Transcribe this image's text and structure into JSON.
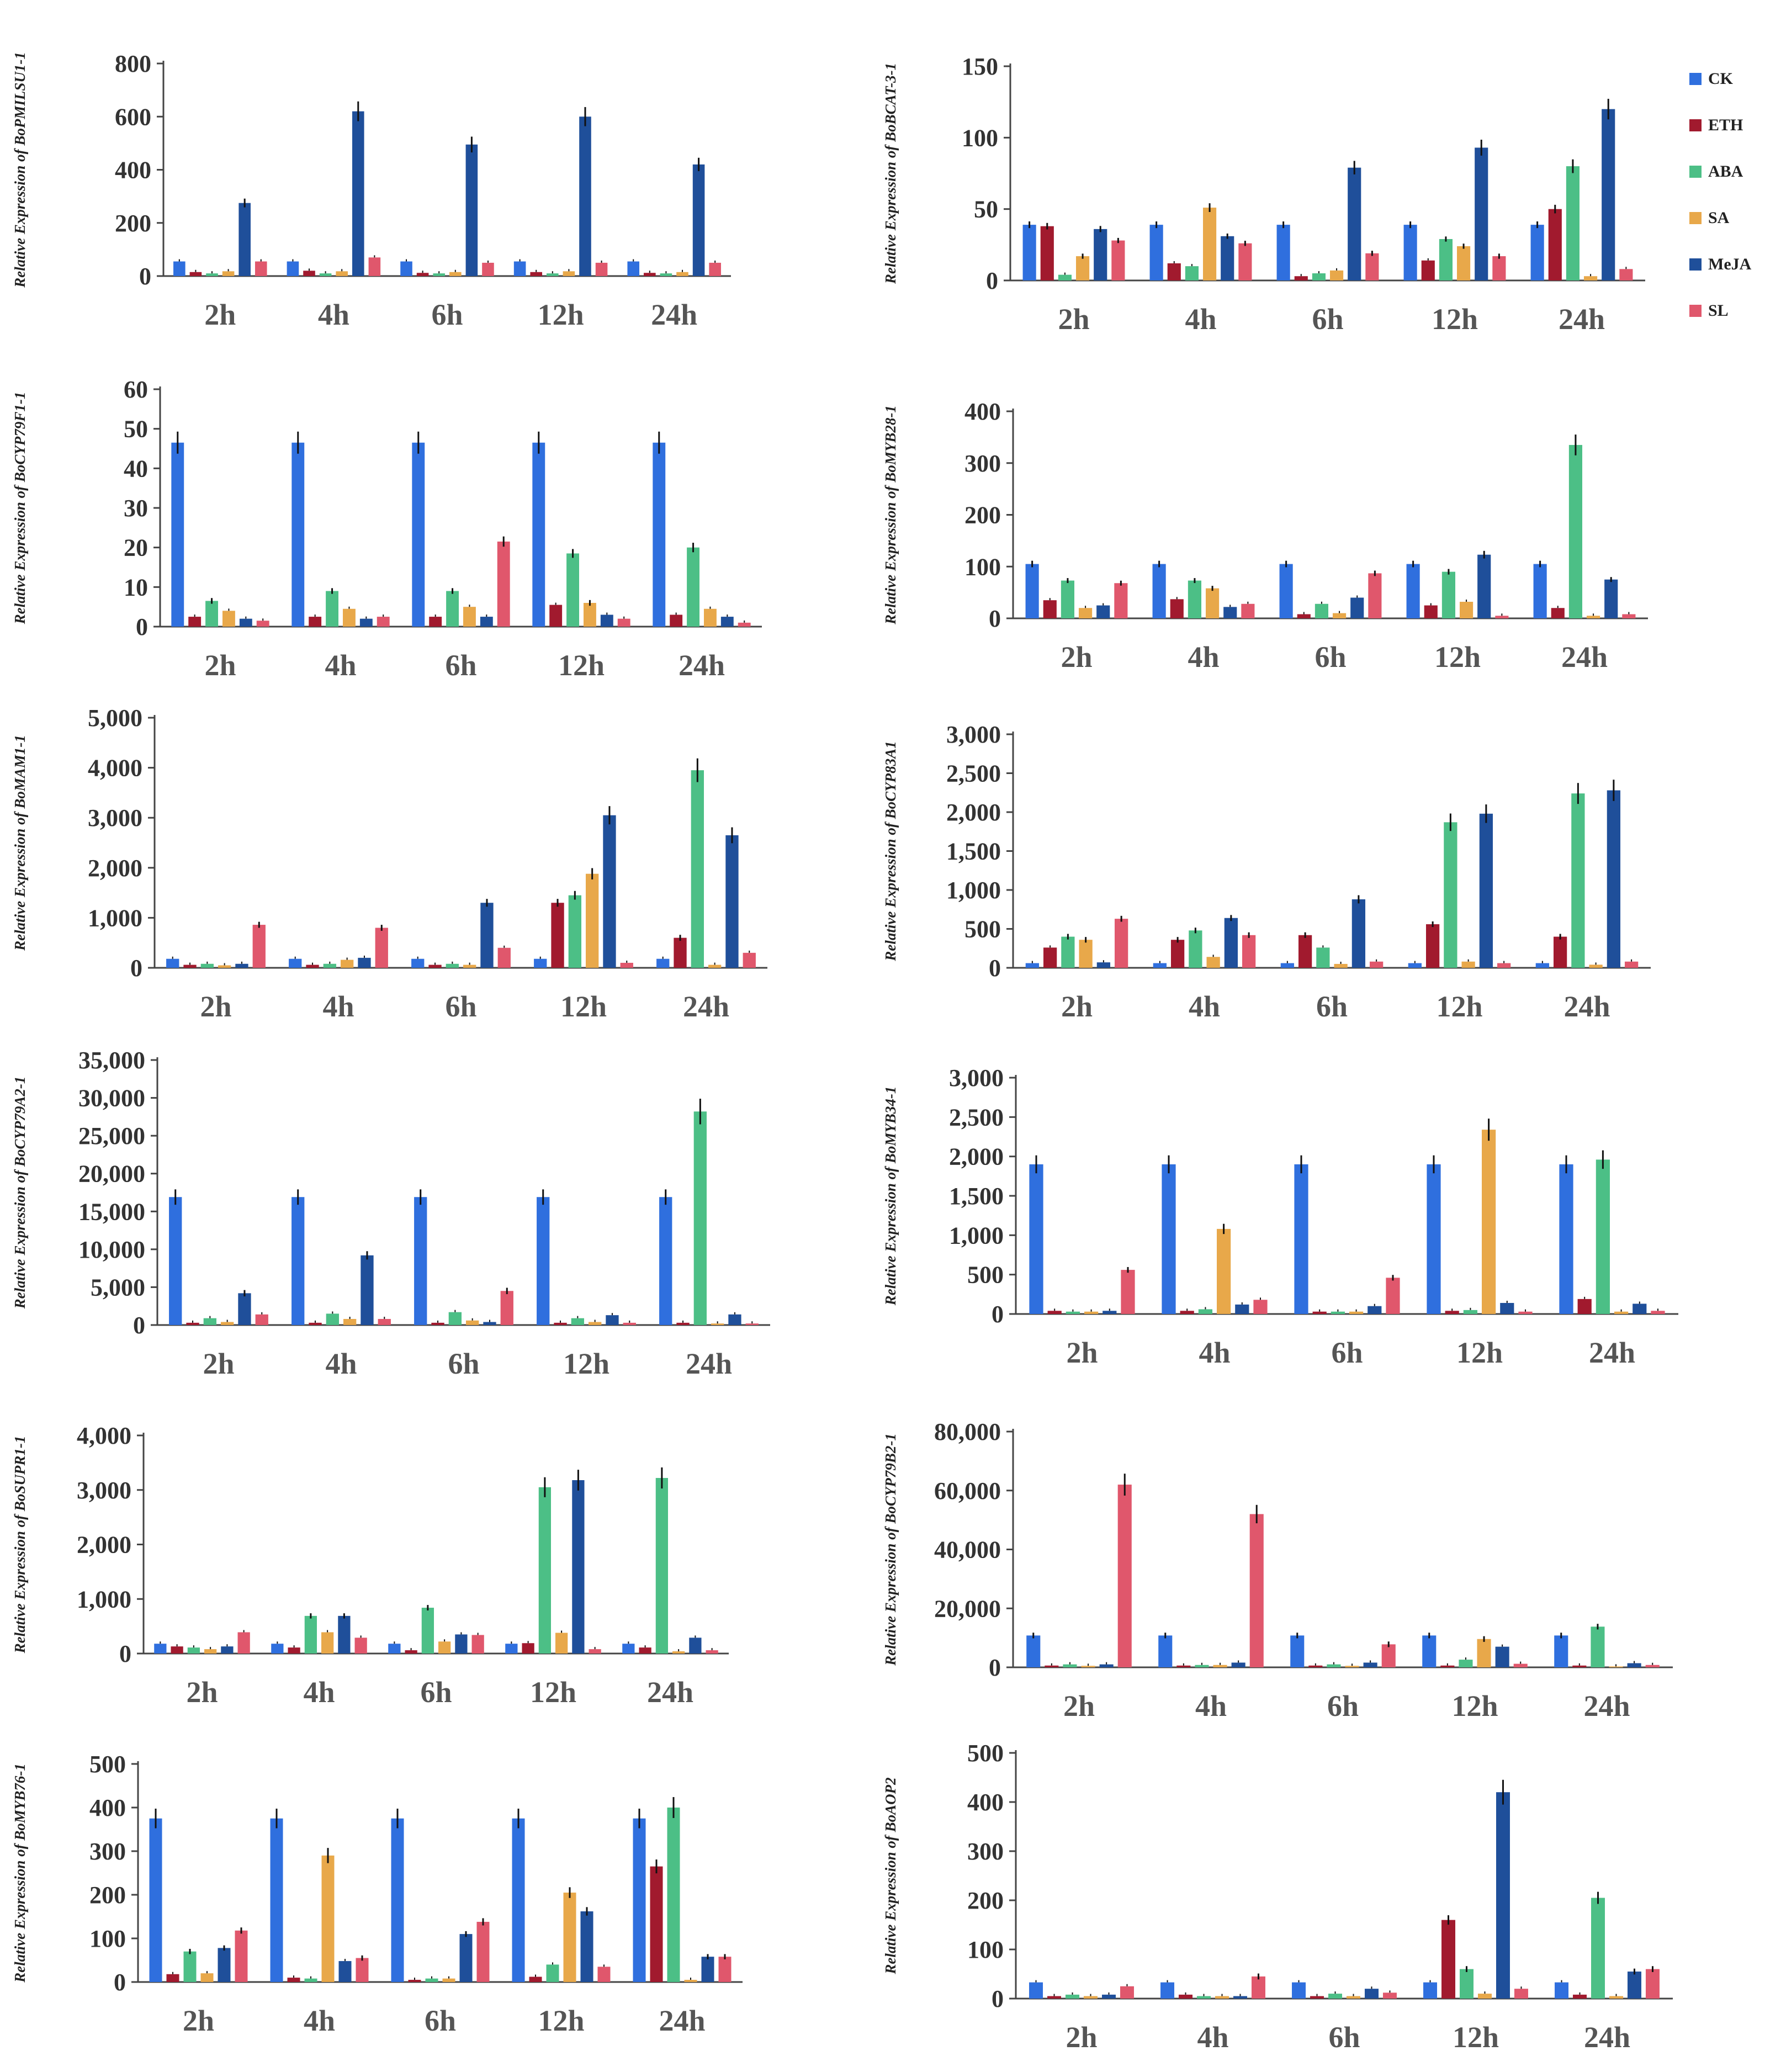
{
  "legend": [
    {
      "name": "CK",
      "color": "#2f6fde"
    },
    {
      "name": "ETH",
      "color": "#a11a2e"
    },
    {
      "name": "ABA",
      "color": "#4cbf86"
    },
    {
      "name": "SA",
      "color": "#e8a84a"
    },
    {
      "name": "MeJA",
      "color": "#1f4f9a"
    },
    {
      "name": "SL",
      "color": "#e0576c"
    }
  ],
  "chart_data": [
    {
      "type": "bar",
      "ylabel": "Relative Expression of  BoPMILSU1-1",
      "categories": [
        "2h",
        "4h",
        "6h",
        "12h",
        "24h"
      ],
      "ylim": [
        0,
        800
      ],
      "yticks": [
        0,
        200,
        400,
        600,
        800
      ],
      "ytick_labels": [
        "0",
        "200",
        "400",
        "600",
        "800"
      ],
      "series": [
        {
          "name": "CK",
          "values": [
            55,
            55,
            55,
            55,
            55
          ]
        },
        {
          "name": "ETH",
          "values": [
            15,
            20,
            12,
            15,
            12
          ]
        },
        {
          "name": "ABA",
          "values": [
            10,
            10,
            10,
            10,
            10
          ]
        },
        {
          "name": "SA",
          "values": [
            18,
            18,
            15,
            18,
            15
          ]
        },
        {
          "name": "MeJA",
          "values": [
            275,
            620,
            495,
            600,
            420
          ]
        },
        {
          "name": "SL",
          "values": [
            55,
            70,
            50,
            50,
            50
          ]
        }
      ]
    },
    {
      "type": "bar",
      "ylabel": "Relative Expression of  BoBCAT-3-1",
      "categories": [
        "2h",
        "4h",
        "6h",
        "12h",
        "24h"
      ],
      "ylim": [
        0,
        150
      ],
      "yticks": [
        0,
        50,
        100,
        150
      ],
      "ytick_labels": [
        "0",
        "50",
        "100",
        "150"
      ],
      "series": [
        {
          "name": "CK",
          "values": [
            39,
            39,
            39,
            39,
            39
          ]
        },
        {
          "name": "ETH",
          "values": [
            38,
            12,
            3,
            14,
            50
          ]
        },
        {
          "name": "ABA",
          "values": [
            4,
            10,
            5,
            29,
            80
          ]
        },
        {
          "name": "SA",
          "values": [
            17,
            51,
            7,
            24,
            3
          ]
        },
        {
          "name": "MeJA",
          "values": [
            36,
            31,
            79,
            93,
            120
          ]
        },
        {
          "name": "SL",
          "values": [
            28,
            26,
            19,
            17,
            8
          ]
        }
      ]
    },
    {
      "type": "bar",
      "ylabel": "Relative Expression of  BoCYP79F1-1",
      "categories": [
        "2h",
        "4h",
        "6h",
        "12h",
        "24h"
      ],
      "ylim": [
        0,
        60
      ],
      "yticks": [
        0,
        10,
        20,
        30,
        40,
        50,
        60
      ],
      "ytick_labels": [
        "0",
        "10",
        "20",
        "30",
        "40",
        "50",
        "60"
      ],
      "series": [
        {
          "name": "CK",
          "values": [
            46.5,
            46.5,
            46.5,
            46.5,
            46.5
          ]
        },
        {
          "name": "ETH",
          "values": [
            2.5,
            2.5,
            2.5,
            5.5,
            3.0
          ]
        },
        {
          "name": "ABA",
          "values": [
            6.5,
            9.0,
            9.0,
            18.5,
            20.0
          ]
        },
        {
          "name": "SA",
          "values": [
            4.0,
            4.5,
            5.0,
            6.0,
            4.5
          ]
        },
        {
          "name": "MeJA",
          "values": [
            2.0,
            2.0,
            2.5,
            3.0,
            2.5
          ]
        },
        {
          "name": "SL",
          "values": [
            1.5,
            2.5,
            21.5,
            2.0,
            1.0
          ]
        }
      ]
    },
    {
      "type": "bar",
      "ylabel": "Relative Expression of  BoMYB28-1",
      "categories": [
        "2h",
        "4h",
        "6h",
        "12h",
        "24h"
      ],
      "ylim": [
        0,
        400
      ],
      "yticks": [
        0,
        100,
        200,
        300,
        400
      ],
      "ytick_labels": [
        "0",
        "100",
        "200",
        "300",
        "400"
      ],
      "series": [
        {
          "name": "CK",
          "values": [
            105,
            105,
            105,
            105,
            105
          ]
        },
        {
          "name": "ETH",
          "values": [
            35,
            37,
            8,
            25,
            20
          ]
        },
        {
          "name": "ABA",
          "values": [
            73,
            73,
            28,
            90,
            335
          ]
        },
        {
          "name": "SA",
          "values": [
            20,
            58,
            10,
            32,
            5
          ]
        },
        {
          "name": "MeJA",
          "values": [
            25,
            22,
            40,
            123,
            75
          ]
        },
        {
          "name": "SL",
          "values": [
            68,
            28,
            87,
            5,
            8
          ]
        }
      ]
    },
    {
      "type": "bar",
      "ylabel": "Relative Expression of  BoMAM1-1",
      "categories": [
        "2h",
        "4h",
        "6h",
        "12h",
        "24h"
      ],
      "ylim": [
        0,
        5000
      ],
      "yticks": [
        0,
        1000,
        2000,
        3000,
        4000,
        5000
      ],
      "ytick_labels": [
        "0",
        "1,000",
        "2,000",
        "3,000",
        "4,000",
        "5,000"
      ],
      "series": [
        {
          "name": "CK",
          "values": [
            180,
            180,
            180,
            180,
            180
          ]
        },
        {
          "name": "ETH",
          "values": [
            60,
            60,
            60,
            1300,
            600
          ]
        },
        {
          "name": "ABA",
          "values": [
            80,
            80,
            80,
            1450,
            3950
          ]
        },
        {
          "name": "SA",
          "values": [
            50,
            160,
            60,
            1880,
            60
          ]
        },
        {
          "name": "MeJA",
          "values": [
            80,
            200,
            1300,
            3050,
            2650
          ]
        },
        {
          "name": "SL",
          "values": [
            860,
            800,
            400,
            100,
            300
          ]
        }
      ]
    },
    {
      "type": "bar",
      "ylabel": "Relative Expression of  BoCYP83A1",
      "categories": [
        "2h",
        "4h",
        "6h",
        "12h",
        "24h"
      ],
      "ylim": [
        0,
        3000
      ],
      "yticks": [
        0,
        500,
        1000,
        1500,
        2000,
        2500,
        3000
      ],
      "ytick_labels": [
        "0",
        "500",
        "1,000",
        "1,500",
        "2,000",
        "2,500",
        "3,000"
      ],
      "series": [
        {
          "name": "CK",
          "values": [
            60,
            60,
            60,
            60,
            60
          ]
        },
        {
          "name": "ETH",
          "values": [
            260,
            360,
            420,
            560,
            400
          ]
        },
        {
          "name": "ABA",
          "values": [
            400,
            480,
            260,
            1870,
            2240
          ]
        },
        {
          "name": "SA",
          "values": [
            360,
            140,
            50,
            80,
            40
          ]
        },
        {
          "name": "MeJA",
          "values": [
            70,
            640,
            880,
            1980,
            2280
          ]
        },
        {
          "name": "SL",
          "values": [
            630,
            420,
            80,
            60,
            80
          ]
        }
      ]
    },
    {
      "type": "bar",
      "ylabel": "Relative Expression of  BoCYP79A2-1",
      "categories": [
        "2h",
        "4h",
        "6h",
        "12h",
        "24h"
      ],
      "ylim": [
        0,
        35000
      ],
      "yticks": [
        0,
        5000,
        10000,
        15000,
        20000,
        25000,
        30000,
        35000
      ],
      "ytick_labels": [
        "0",
        "5,000",
        "10,000",
        "15,000",
        "20,000",
        "25,000",
        "30,000",
        "35,000"
      ],
      "series": [
        {
          "name": "CK",
          "values": [
            16900,
            16900,
            16900,
            16900,
            16900
          ]
        },
        {
          "name": "ETH",
          "values": [
            300,
            300,
            300,
            300,
            300
          ]
        },
        {
          "name": "ABA",
          "values": [
            900,
            1500,
            1700,
            900,
            28200
          ]
        },
        {
          "name": "SA",
          "values": [
            400,
            800,
            600,
            400,
            200
          ]
        },
        {
          "name": "MeJA",
          "values": [
            4200,
            9200,
            400,
            1300,
            1400
          ]
        },
        {
          "name": "SL",
          "values": [
            1400,
            800,
            4500,
            300,
            200
          ]
        }
      ]
    },
    {
      "type": "bar",
      "ylabel": "Relative Expression of  BoMYB34-1",
      "categories": [
        "2h",
        "4h",
        "6h",
        "12h",
        "24h"
      ],
      "ylim": [
        0,
        3000
      ],
      "yticks": [
        0,
        500,
        1000,
        1500,
        2000,
        2500,
        3000
      ],
      "ytick_labels": [
        "0",
        "500",
        "1,000",
        "1,500",
        "2,000",
        "2,500",
        "3,000"
      ],
      "series": [
        {
          "name": "CK",
          "values": [
            1900,
            1900,
            1900,
            1900,
            1900
          ]
        },
        {
          "name": "ETH",
          "values": [
            40,
            40,
            30,
            40,
            190
          ]
        },
        {
          "name": "ABA",
          "values": [
            30,
            60,
            30,
            50,
            1960
          ]
        },
        {
          "name": "SA",
          "values": [
            30,
            1080,
            30,
            2340,
            30
          ]
        },
        {
          "name": "MeJA",
          "values": [
            40,
            120,
            100,
            140,
            130
          ]
        },
        {
          "name": "SL",
          "values": [
            560,
            180,
            460,
            30,
            40
          ]
        }
      ]
    },
    {
      "type": "bar",
      "ylabel": "Relative Expression of  BoSUPR1-1",
      "categories": [
        "2h",
        "4h",
        "6h",
        "12h",
        "24h"
      ],
      "ylim": [
        0,
        4000
      ],
      "yticks": [
        0,
        1000,
        2000,
        3000,
        4000
      ],
      "ytick_labels": [
        "0",
        "1,000",
        "2,000",
        "3,000",
        "4,000"
      ],
      "series": [
        {
          "name": "CK",
          "values": [
            180,
            180,
            180,
            180,
            180
          ]
        },
        {
          "name": "ETH",
          "values": [
            130,
            110,
            60,
            190,
            110
          ]
        },
        {
          "name": "ABA",
          "values": [
            110,
            690,
            840,
            3050,
            3220
          ]
        },
        {
          "name": "SA",
          "values": [
            80,
            390,
            220,
            380,
            40
          ]
        },
        {
          "name": "MeJA",
          "values": [
            130,
            690,
            350,
            3180,
            290
          ]
        },
        {
          "name": "SL",
          "values": [
            390,
            290,
            340,
            80,
            60
          ]
        }
      ]
    },
    {
      "type": "bar",
      "ylabel": "Relative Expression of  BoCYP79B2-1",
      "categories": [
        "2h",
        "4h",
        "6h",
        "12h",
        "24h"
      ],
      "ylim": [
        0,
        80000
      ],
      "yticks": [
        0,
        20000,
        40000,
        60000,
        80000
      ],
      "ytick_labels": [
        "0",
        "20,000",
        "40,000",
        "60,000",
        "80,000"
      ],
      "series": [
        {
          "name": "CK",
          "values": [
            10800,
            10800,
            10800,
            10800,
            10800
          ]
        },
        {
          "name": "ETH",
          "values": [
            600,
            600,
            600,
            600,
            600
          ]
        },
        {
          "name": "ABA",
          "values": [
            1000,
            800,
            1000,
            2600,
            13800
          ]
        },
        {
          "name": "SA",
          "values": [
            500,
            800,
            500,
            9600,
            300
          ]
        },
        {
          "name": "MeJA",
          "values": [
            1000,
            1600,
            1600,
            7000,
            1400
          ]
        },
        {
          "name": "SL",
          "values": [
            62000,
            52000,
            7800,
            1200,
            800
          ]
        }
      ]
    },
    {
      "type": "bar",
      "ylabel": "Relative Expression of  BoMYB76-1",
      "categories": [
        "2h",
        "4h",
        "6h",
        "12h",
        "24h"
      ],
      "ylim": [
        0,
        500
      ],
      "yticks": [
        0,
        100,
        200,
        300,
        400,
        500
      ],
      "ytick_labels": [
        "0",
        "100",
        "200",
        "300",
        "400",
        "500"
      ],
      "series": [
        {
          "name": "CK",
          "values": [
            375,
            375,
            375,
            375,
            375
          ]
        },
        {
          "name": "ETH",
          "values": [
            18,
            10,
            5,
            12,
            265
          ]
        },
        {
          "name": "ABA",
          "values": [
            70,
            8,
            8,
            40,
            400
          ]
        },
        {
          "name": "SA",
          "values": [
            20,
            290,
            8,
            205,
            5
          ]
        },
        {
          "name": "MeJA",
          "values": [
            78,
            48,
            110,
            162,
            58
          ]
        },
        {
          "name": "SL",
          "values": [
            118,
            55,
            138,
            35,
            58
          ]
        }
      ]
    },
    {
      "type": "bar",
      "ylabel": "Relative Expression of  BoAOP2",
      "categories": [
        "2h",
        "4h",
        "6h",
        "12h",
        "24h"
      ],
      "ylim": [
        0,
        500
      ],
      "yticks": [
        0,
        100,
        200,
        300,
        400,
        500
      ],
      "ytick_labels": [
        "0",
        "100",
        "200",
        "300",
        "400",
        "500"
      ],
      "series": [
        {
          "name": "CK",
          "values": [
            33,
            33,
            33,
            33,
            33
          ]
        },
        {
          "name": "ETH",
          "values": [
            5,
            8,
            5,
            160,
            8
          ]
        },
        {
          "name": "ABA",
          "values": [
            8,
            5,
            10,
            60,
            205
          ]
        },
        {
          "name": "SA",
          "values": [
            5,
            5,
            5,
            10,
            5
          ]
        },
        {
          "name": "MeJA",
          "values": [
            8,
            5,
            20,
            420,
            55
          ]
        },
        {
          "name": "SL",
          "values": [
            25,
            45,
            12,
            20,
            60
          ]
        }
      ]
    }
  ]
}
